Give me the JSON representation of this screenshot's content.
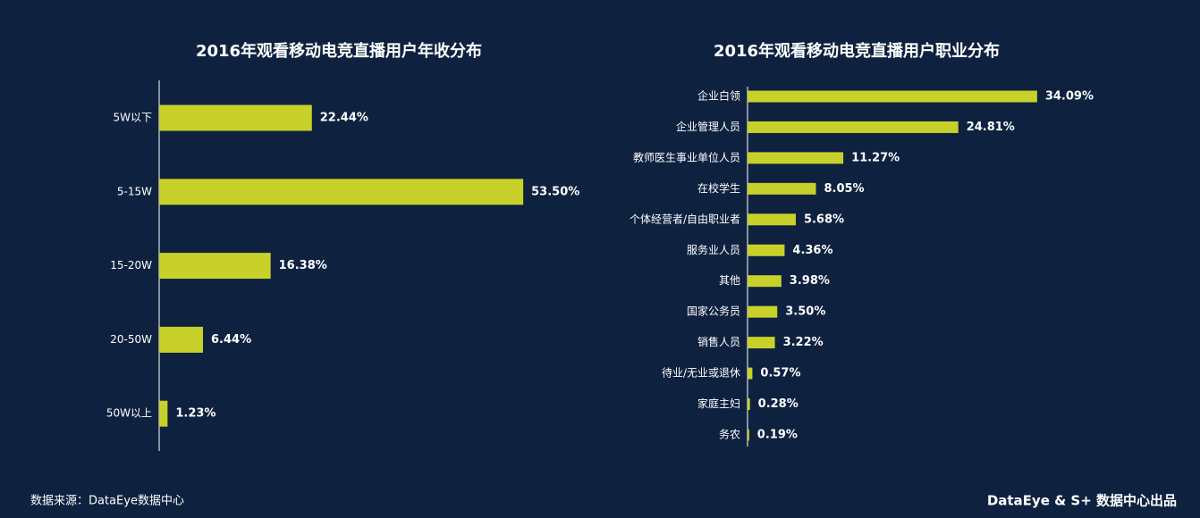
{
  "chart_data": [
    {
      "type": "hbar",
      "title": "2016年观看移动电竞直播用户年收分布",
      "color": "#c8d12a",
      "categories": [
        "5W以下",
        "5-15W",
        "15-20W",
        "20-50W",
        "50W以上"
      ],
      "values": [
        22.44,
        53.5,
        16.38,
        6.44,
        1.23
      ],
      "value_labels": [
        "22.44%",
        "53.50%",
        "16.38%",
        "6.44%",
        "1.23%"
      ]
    },
    {
      "type": "hbar",
      "title": "2016年观看移动电竞直播用户职业分布",
      "color": "#c8d12a",
      "categories": [
        "企业白领",
        "企业管理人员",
        "教师医生事业单位人员",
        "在校学生",
        "个体经营者/自由职业者",
        "服务业人员",
        "其他",
        "国家公务员",
        "销售人员",
        "待业/无业或退休",
        "家庭主妇",
        "务农"
      ],
      "values": [
        34.09,
        24.81,
        11.27,
        8.05,
        5.68,
        4.36,
        3.98,
        3.5,
        3.22,
        0.57,
        0.28,
        0.19
      ],
      "value_labels": [
        "34.09%",
        "24.81%",
        "11.27%",
        "8.05%",
        "5.68%",
        "4.36%",
        "3.98%",
        "3.50%",
        "3.22%",
        "0.57%",
        "0.28%",
        "0.19%"
      ]
    }
  ],
  "footer": {
    "source": "数据来源：DataEye数据中心",
    "credit": "DataEye & S+ 数据中心出品"
  }
}
